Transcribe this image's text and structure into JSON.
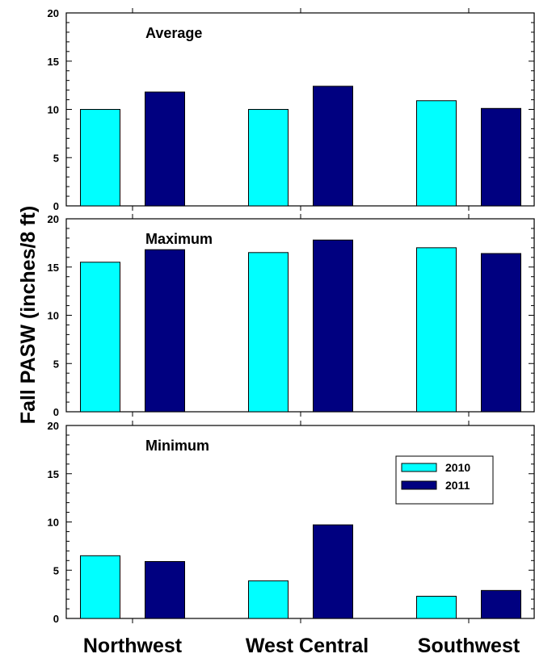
{
  "chart_data": {
    "type": "bar",
    "ylabel": "Fall PASW (inches/8 ft)",
    "categories": [
      "Northwest",
      "West Central",
      "Southwest"
    ],
    "legend": {
      "placement": "top-right of bottom panel",
      "entries": [
        "2010",
        "2011"
      ]
    },
    "colors": {
      "2010": "#00FFFF",
      "2011": "#000080"
    },
    "ylim": [
      0,
      20
    ],
    "yticks": [
      "0",
      "5",
      "10",
      "15",
      "20"
    ],
    "grid": false,
    "panels": [
      {
        "title": "Average",
        "series": [
          {
            "name": "2010",
            "values": [
              10.0,
              10.0,
              10.9
            ]
          },
          {
            "name": "2011",
            "values": [
              11.8,
              12.4,
              10.1
            ]
          }
        ]
      },
      {
        "title": "Maximum",
        "series": [
          {
            "name": "2010",
            "values": [
              15.5,
              16.5,
              17.0
            ]
          },
          {
            "name": "2011",
            "values": [
              16.8,
              17.8,
              16.4
            ]
          }
        ]
      },
      {
        "title": "Minimum",
        "series": [
          {
            "name": "2010",
            "values": [
              6.5,
              3.9,
              2.3
            ]
          },
          {
            "name": "2011",
            "values": [
              5.9,
              9.7,
              2.9
            ]
          }
        ]
      }
    ]
  }
}
